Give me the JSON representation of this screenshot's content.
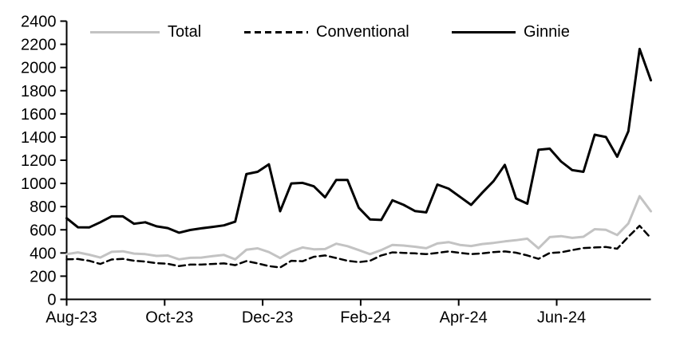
{
  "chart_data": {
    "type": "line",
    "title": "",
    "xlabel": "",
    "ylabel": "",
    "x_unit": "weekly",
    "n_points": 53,
    "x_tick_labels": [
      "Aug-23",
      "Oct-23",
      "Dec-23",
      "Feb-24",
      "Apr-24",
      "Jun-24"
    ],
    "x_tick_month_offsets": [
      0,
      2,
      4,
      6,
      8,
      10
    ],
    "ylim": [
      0,
      2400
    ],
    "y_tick_step": 200,
    "y_tick_labels": [
      "0",
      "200",
      "400",
      "600",
      "800",
      "1000",
      "1200",
      "1400",
      "1600",
      "1800",
      "2000",
      "2200",
      "2400"
    ],
    "grid": false,
    "legend_position": "top",
    "series": [
      {
        "name": "Total",
        "color": "#c3c3c3",
        "style": "solid",
        "width": 3,
        "values": [
          390,
          405,
          385,
          360,
          410,
          415,
          395,
          390,
          375,
          378,
          345,
          358,
          360,
          373,
          383,
          345,
          428,
          440,
          408,
          356,
          413,
          448,
          432,
          434,
          480,
          459,
          425,
          390,
          425,
          470,
          464,
          454,
          441,
          482,
          494,
          470,
          460,
          477,
          487,
          500,
          510,
          523,
          440,
          537,
          545,
          530,
          540,
          605,
          600,
          555,
          655,
          890,
          760
        ]
      },
      {
        "name": "Conventional",
        "color": "#000000",
        "style": "dashed",
        "width": 2.5,
        "values": [
          345,
          348,
          333,
          305,
          344,
          349,
          333,
          326,
          312,
          307,
          287,
          300,
          300,
          305,
          310,
          295,
          330,
          310,
          287,
          275,
          333,
          329,
          367,
          379,
          356,
          333,
          321,
          333,
          379,
          405,
          401,
          397,
          390,
          401,
          413,
          401,
          390,
          397,
          408,
          413,
          402,
          379,
          349,
          400,
          406,
          425,
          443,
          448,
          452,
          437,
          540,
          635,
          528
        ]
      },
      {
        "name": "Ginnie",
        "color": "#000000",
        "style": "solid",
        "width": 3,
        "values": [
          700,
          622,
          620,
          665,
          716,
          716,
          652,
          665,
          630,
          615,
          575,
          598,
          613,
          625,
          638,
          670,
          1080,
          1100,
          1165,
          760,
          1000,
          1005,
          975,
          880,
          1030,
          1030,
          790,
          690,
          685,
          855,
          815,
          762,
          750,
          990,
          955,
          885,
          815,
          920,
          1020,
          1160,
          870,
          825,
          1290,
          1300,
          1190,
          1115,
          1100,
          1420,
          1400,
          1230,
          1450,
          2160,
          1890
        ]
      }
    ],
    "axis_color": "#000000"
  },
  "legend": {
    "total_label": "Total",
    "conventional_label": "Conventional",
    "ginnie_label": "Ginnie"
  }
}
